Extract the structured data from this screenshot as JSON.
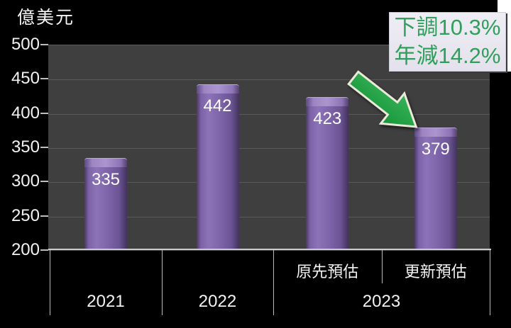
{
  "unit_label": "億美元",
  "chart_data": {
    "type": "bar",
    "title": "",
    "unit_label": "億美元",
    "categories": [
      "2021",
      "2022",
      "2023 原先預估",
      "2023 更新預估"
    ],
    "values": [
      335,
      442,
      423,
      379
    ],
    "bar_labels": [
      "335",
      "442",
      "423",
      "379"
    ],
    "ylim": [
      200,
      500
    ],
    "ytick_interval": 50,
    "yticks": [
      500,
      450,
      400,
      350,
      300,
      250,
      200
    ],
    "grid": true,
    "legend": "none",
    "x_axis": {
      "groups": [
        {
          "label": "2021",
          "span": 1,
          "sublabels": []
        },
        {
          "label": "2022",
          "span": 1,
          "sublabels": []
        },
        {
          "label": "2023",
          "span": 2,
          "sublabels": [
            "原先預估",
            "更新預估"
          ]
        }
      ]
    },
    "annotation": {
      "line1": "下調10.3%",
      "line2": "年減14.2%",
      "target": "更新預估"
    },
    "colors": {
      "background": "#000000",
      "plot_background": "#3f3f3f",
      "gridline": "#5a5a5a",
      "axis_line": "#cdcdcd",
      "bar": "#7b61a5",
      "bar_label": "#ffffff",
      "annotation_text": "#2f9f5b",
      "annotation_background": "#e9e6f0",
      "arrow": "#23a148"
    }
  }
}
